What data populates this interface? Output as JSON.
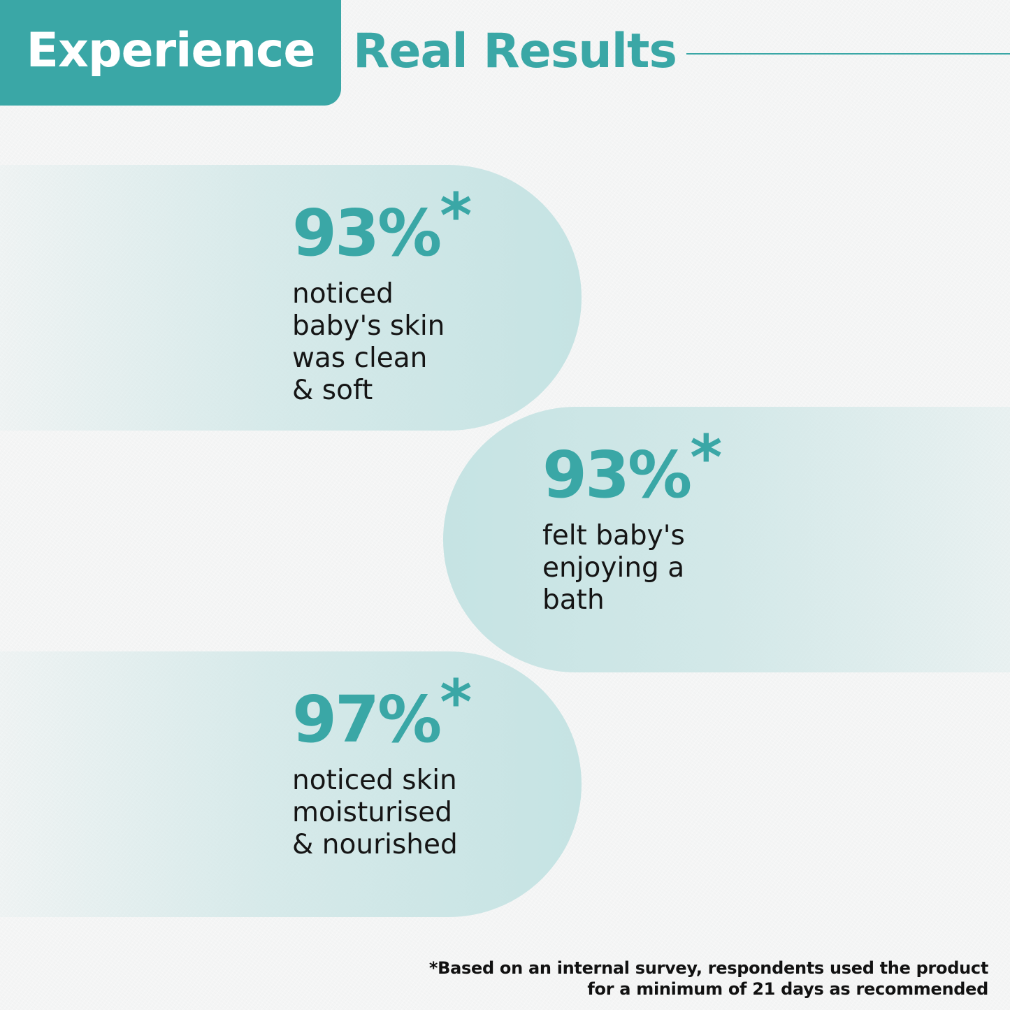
{
  "header": {
    "tab_label": "Experience",
    "title": "Real Results"
  },
  "stats": [
    {
      "value": "93%",
      "marker": "*",
      "description": "noticed\nbaby's skin\nwas clean\n& soft"
    },
    {
      "value": "93%",
      "marker": "*",
      "description": "felt baby's\nenjoying a\nbath"
    },
    {
      "value": "97%",
      "marker": "*",
      "description": "noticed skin\nmoisturised\n& nourished"
    }
  ],
  "footnote": {
    "line1": "*Based on an internal survey, respondents used the product",
    "line2": "for a minimum of 21 days as recommended"
  },
  "colors": {
    "accent": "#3aa7a6",
    "pill": "#c5e3e3",
    "background": "#f4f5f5",
    "text": "#151515"
  }
}
